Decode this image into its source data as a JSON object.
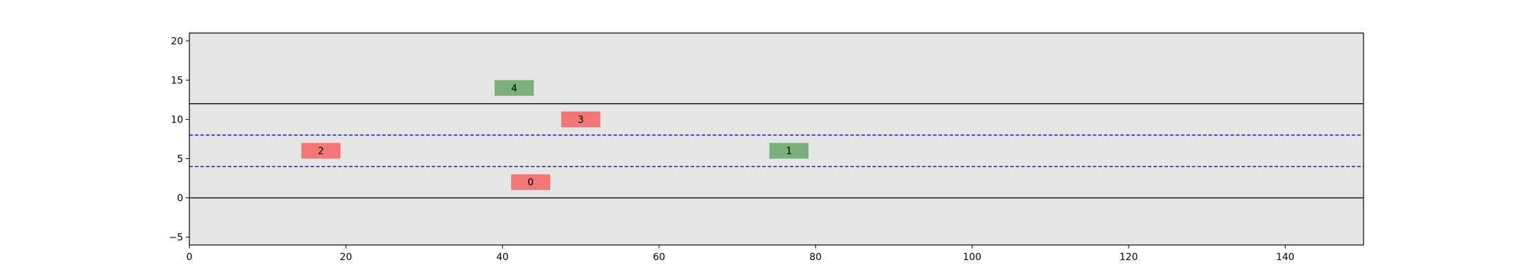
{
  "chart_data": {
    "type": "scatter",
    "title": "",
    "xlabel": "",
    "ylabel": "",
    "xlim": [
      0,
      150
    ],
    "ylim": [
      -6,
      21
    ],
    "xticks": [
      0,
      20,
      40,
      60,
      80,
      100,
      120,
      140
    ],
    "yticks": [
      -5,
      0,
      5,
      10,
      15,
      20
    ],
    "xtick_labels": [
      "0",
      "20",
      "40",
      "60",
      "80",
      "100",
      "120",
      "140"
    ],
    "ytick_labels": [
      "−5",
      "0",
      "5",
      "10",
      "15",
      "20"
    ],
    "background_color": "#e5e5e5",
    "grid": false,
    "legend": "none",
    "road_edges": [
      0,
      12
    ],
    "road_edge_color": "#000000",
    "lane_dividers": [
      4,
      8
    ],
    "lane_divider_color": "#0000ff",
    "vehicles": [
      {
        "id": "0",
        "x": 43.6,
        "y": 2,
        "length": 5,
        "width": 2,
        "color": "#f47777"
      },
      {
        "id": "1",
        "x": 76.6,
        "y": 6,
        "length": 5,
        "width": 2,
        "color": "#7ab07a"
      },
      {
        "id": "2",
        "x": 16.8,
        "y": 6,
        "length": 5,
        "width": 2,
        "color": "#f47777"
      },
      {
        "id": "3",
        "x": 50.0,
        "y": 10,
        "length": 5,
        "width": 2,
        "color": "#f47777"
      },
      {
        "id": "4",
        "x": 41.5,
        "y": 14,
        "length": 5,
        "width": 2,
        "color": "#7ab07a"
      }
    ]
  }
}
